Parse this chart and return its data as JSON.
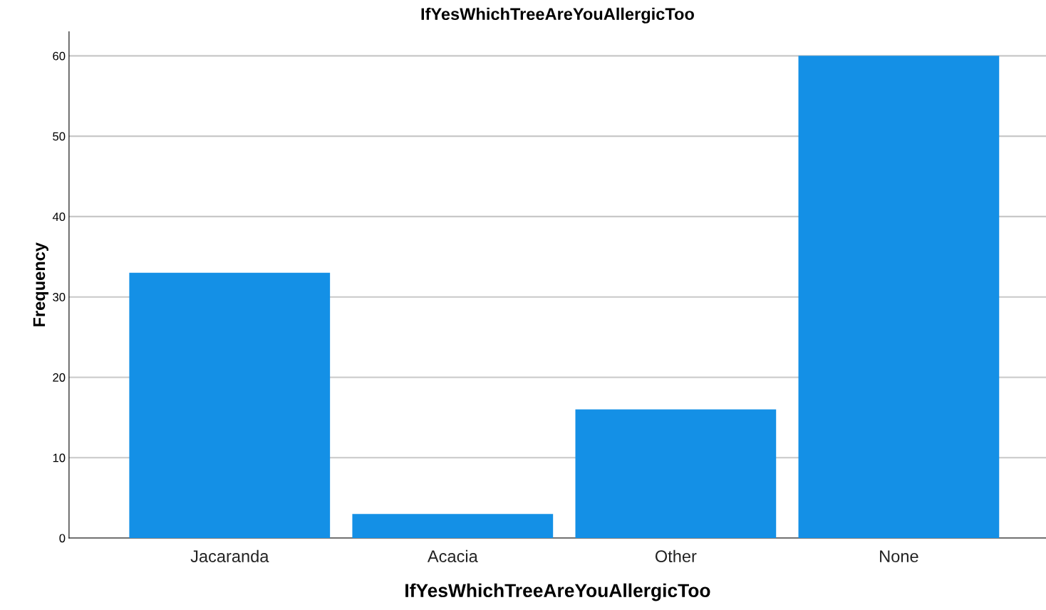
{
  "chart_data": {
    "type": "bar",
    "title": "IfYesWhichTreeAreYouAllergicToo",
    "xlabel": "IfYesWhichTreeAreYouAllergicToo",
    "ylabel": "Frequency",
    "categories": [
      "Jacaranda",
      "Acacia",
      "Other",
      "None"
    ],
    "values": [
      33,
      3,
      16,
      60
    ],
    "color": "#1490e6",
    "ylim": [
      0,
      63
    ],
    "yticks": [
      0,
      10,
      20,
      30,
      40,
      50,
      60
    ],
    "grid": "y",
    "legend": false
  }
}
